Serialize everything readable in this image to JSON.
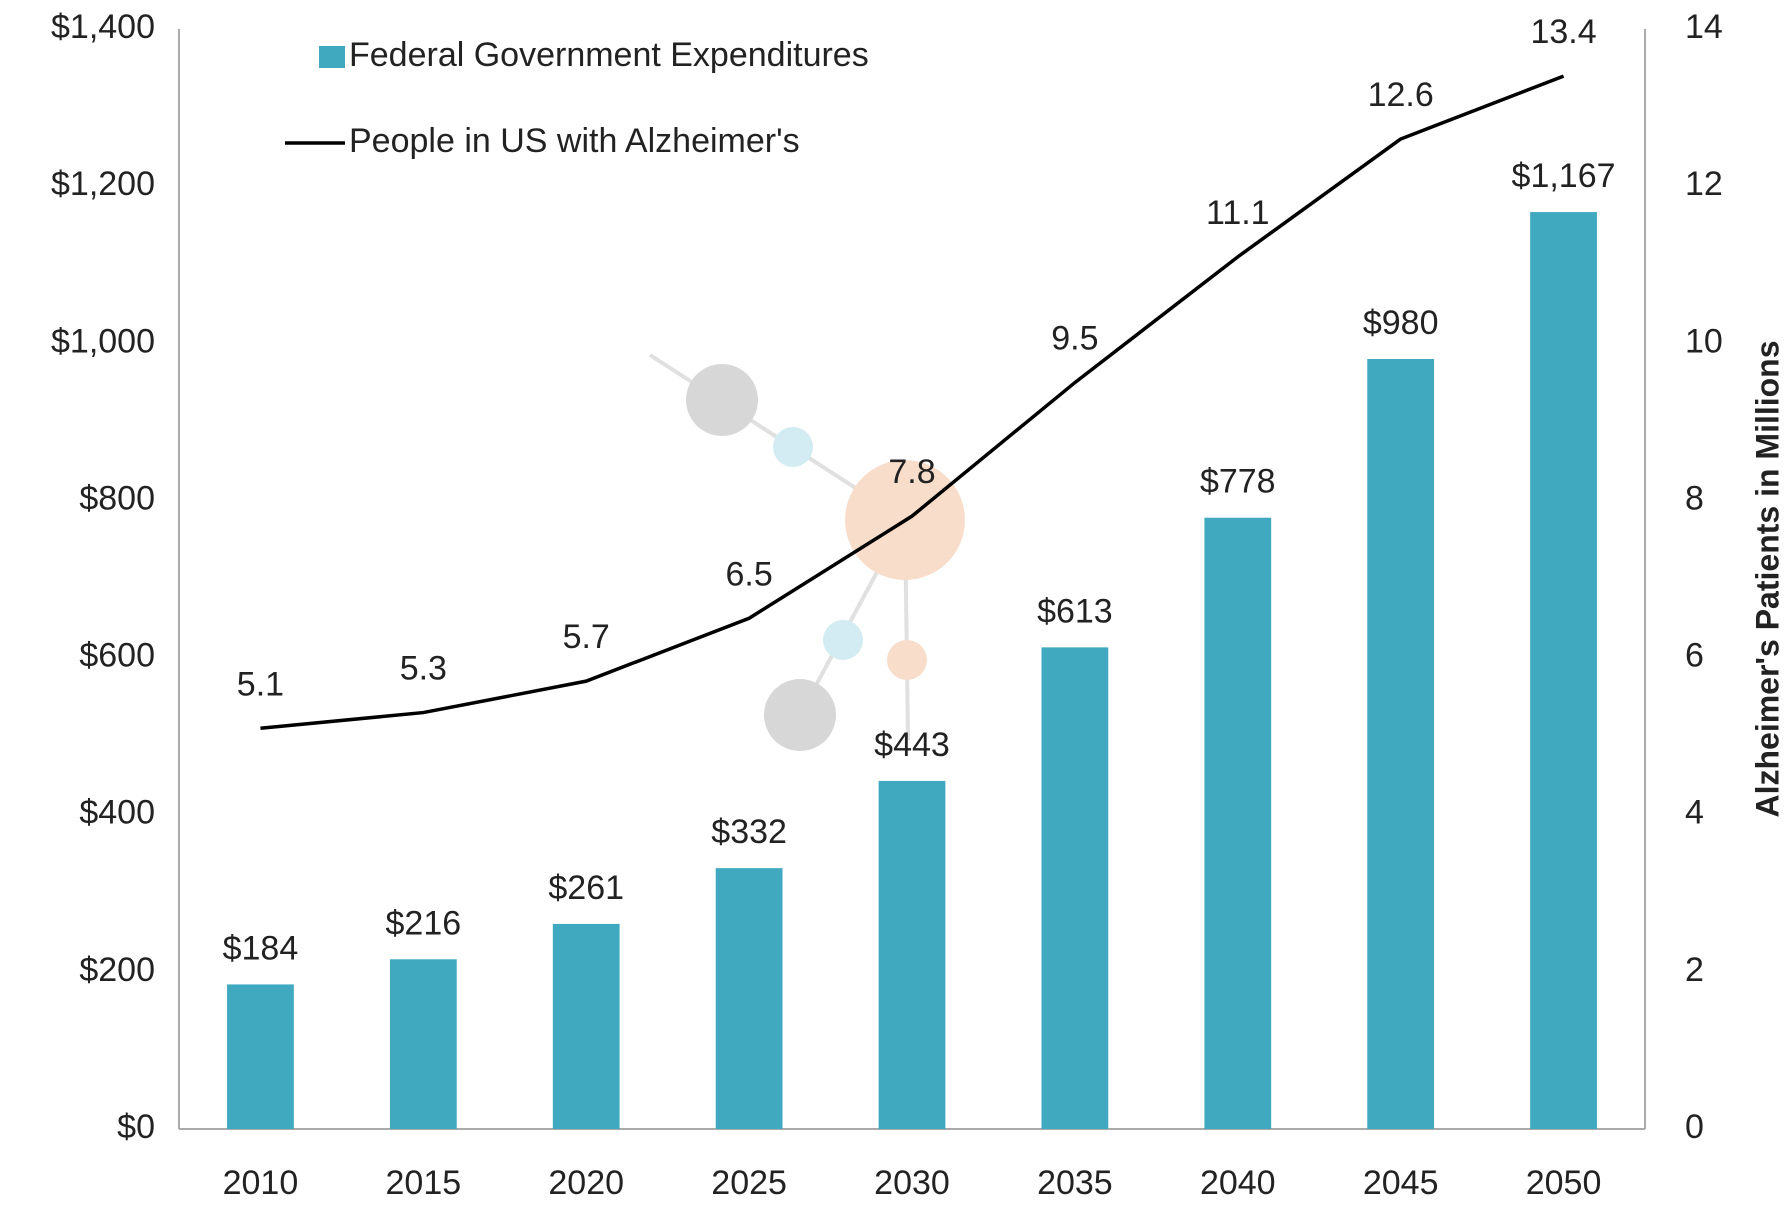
{
  "chart_data": {
    "type": "bar",
    "categories": [
      "2010",
      "2015",
      "2020",
      "2025",
      "2030",
      "2035",
      "2040",
      "2045",
      "2050"
    ],
    "series": [
      {
        "name": "Federal Government Expenditures",
        "type": "bar",
        "color": "#41a9bf",
        "values": [
          184,
          216,
          261,
          332,
          443,
          613,
          778,
          980,
          1167
        ],
        "value_labels": [
          "$184",
          "$216",
          "$261",
          "$332",
          "$443",
          "$613",
          "$778",
          "$980",
          "$1,167"
        ]
      },
      {
        "name": "People in US with Alzheimer's",
        "type": "line",
        "color": "#000000",
        "axis": "y2",
        "values": [
          5.1,
          5.3,
          5.7,
          6.5,
          7.8,
          9.5,
          11.1,
          12.6,
          13.4
        ]
      }
    ],
    "ylim": [
      0,
      1400
    ],
    "yticks": [
      {
        "value": 0,
        "label": "$0"
      },
      {
        "value": 200,
        "label": "$200"
      },
      {
        "value": 400,
        "label": "$400"
      },
      {
        "value": 600,
        "label": "$600"
      },
      {
        "value": 800,
        "label": "$800"
      },
      {
        "value": 1000,
        "label": "$1,000"
      },
      {
        "value": 1200,
        "label": "$1,200"
      },
      {
        "value": 1400,
        "label": "$1,400"
      }
    ],
    "y2lim": [
      0,
      14
    ],
    "y2ticks": [
      0,
      2,
      4,
      6,
      8,
      10,
      12,
      14
    ],
    "y2label": "Alzheimer's Patients in Millions",
    "grid": true,
    "legend": "upper left"
  }
}
